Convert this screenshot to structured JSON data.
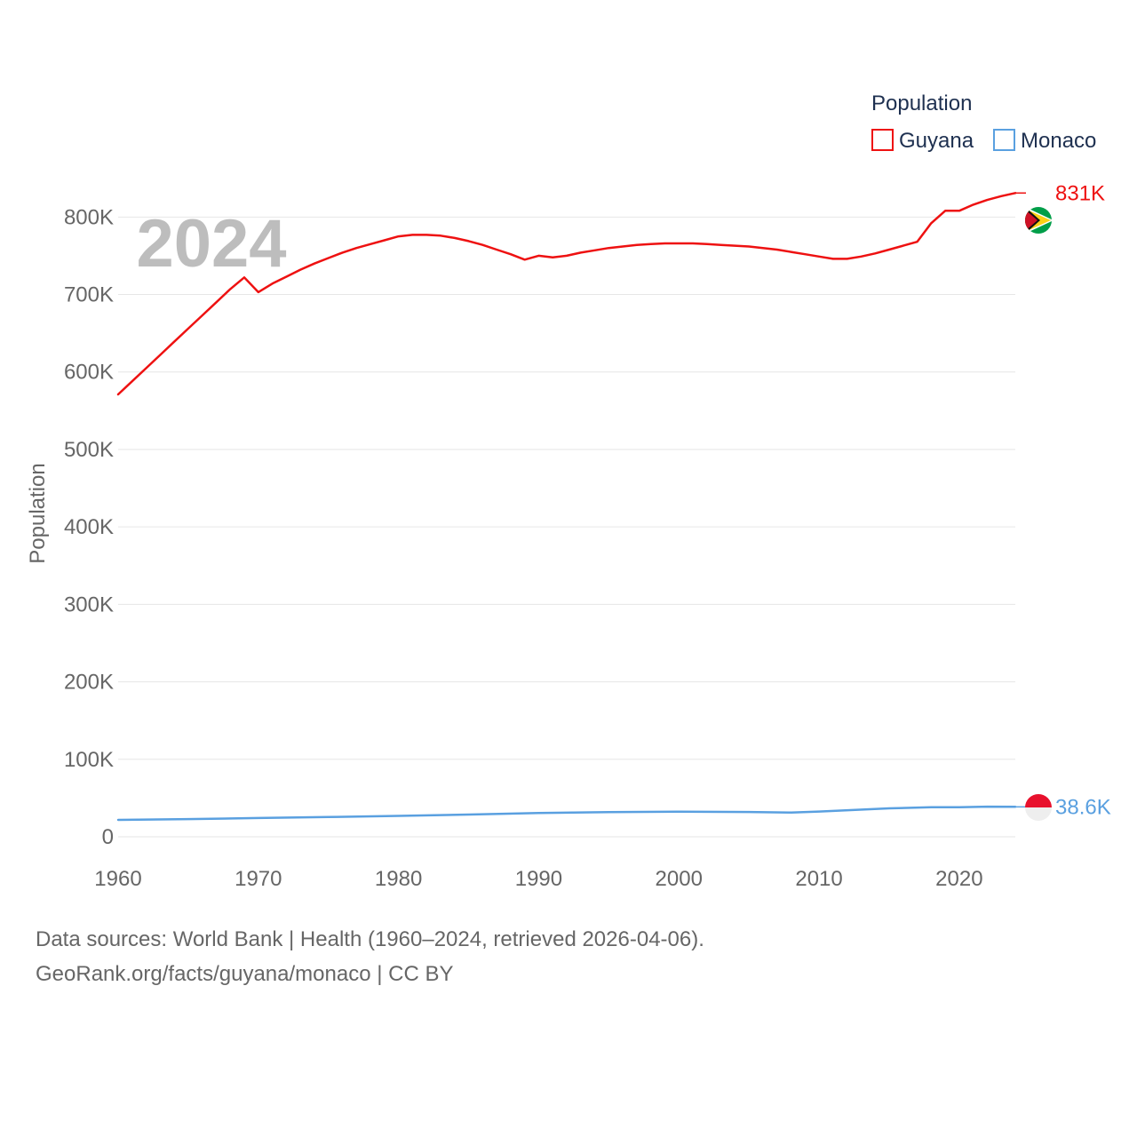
{
  "chart_data": {
    "type": "line",
    "year_label": "2024",
    "ylabel": "Population",
    "xlabel": "",
    "ylim": [
      0,
      860000
    ],
    "xlim": [
      1960,
      2024
    ],
    "y_ticks": [
      {
        "value": 0,
        "label": "0"
      },
      {
        "value": 100000,
        "label": "100K"
      },
      {
        "value": 200000,
        "label": "200K"
      },
      {
        "value": 300000,
        "label": "300K"
      },
      {
        "value": 400000,
        "label": "400K"
      },
      {
        "value": 500000,
        "label": "500K"
      },
      {
        "value": 600000,
        "label": "600K"
      },
      {
        "value": 700000,
        "label": "700K"
      },
      {
        "value": 800000,
        "label": "800K"
      }
    ],
    "x_ticks": [
      {
        "value": 1960,
        "label": "1960"
      },
      {
        "value": 1970,
        "label": "1970"
      },
      {
        "value": 1980,
        "label": "1980"
      },
      {
        "value": 1990,
        "label": "1990"
      },
      {
        "value": 2000,
        "label": "2000"
      },
      {
        "value": 2010,
        "label": "2010"
      },
      {
        "value": 2020,
        "label": "2020"
      }
    ],
    "grid": true,
    "legend": {
      "title": "Population",
      "position": "top-right"
    },
    "series": [
      {
        "name": "Guyana",
        "color": "#ee1111",
        "end_label": "831K",
        "flag": "guyana-flag-icon",
        "x": [
          1960,
          1961,
          1962,
          1963,
          1964,
          1965,
          1966,
          1967,
          1968,
          1969,
          1970,
          1971,
          1972,
          1973,
          1974,
          1975,
          1976,
          1977,
          1978,
          1979,
          1980,
          1981,
          1982,
          1983,
          1984,
          1985,
          1986,
          1987,
          1988,
          1989,
          1990,
          1991,
          1992,
          1993,
          1994,
          1995,
          1996,
          1997,
          1998,
          1999,
          2000,
          2001,
          2002,
          2003,
          2004,
          2005,
          2006,
          2007,
          2008,
          2009,
          2010,
          2011,
          2012,
          2013,
          2014,
          2015,
          2016,
          2017,
          2018,
          2019,
          2020,
          2021,
          2022,
          2023,
          2024
        ],
        "values": [
          571000,
          588000,
          605000,
          622000,
          639000,
          656000,
          673000,
          690000,
          707000,
          722000,
          703000,
          714000,
          723000,
          732000,
          740000,
          747000,
          754000,
          760000,
          765000,
          770000,
          775000,
          777000,
          777000,
          776000,
          773000,
          769000,
          764000,
          758000,
          752000,
          745000,
          750000,
          748000,
          750000,
          754000,
          757000,
          760000,
          762000,
          764000,
          765000,
          766000,
          766000,
          766000,
          765000,
          764000,
          763000,
          762000,
          760000,
          758000,
          755000,
          752000,
          749000,
          746000,
          746000,
          749000,
          753000,
          758000,
          763000,
          768000,
          792000,
          808000,
          808000,
          816000,
          822000,
          827000,
          831000
        ]
      },
      {
        "name": "Monaco",
        "color": "#5aa0e0",
        "end_label": "38.6K",
        "flag": "monaco-flag-icon",
        "x": [
          1960,
          1965,
          1970,
          1975,
          1980,
          1985,
          1990,
          1995,
          2000,
          2005,
          2008,
          2010,
          2015,
          2018,
          2020,
          2022,
          2024
        ],
        "values": [
          21800,
          22800,
          24200,
          25500,
          27000,
          28700,
          30600,
          31900,
          32300,
          32000,
          31300,
          32600,
          36700,
          38100,
          38100,
          38900,
          38600
        ]
      }
    ]
  },
  "footer": {
    "line1": "Data sources: World Bank | Health (1960–2024, retrieved 2026-04-06).",
    "line2": "GeoRank.org/facts/guyana/monaco | CC BY"
  }
}
